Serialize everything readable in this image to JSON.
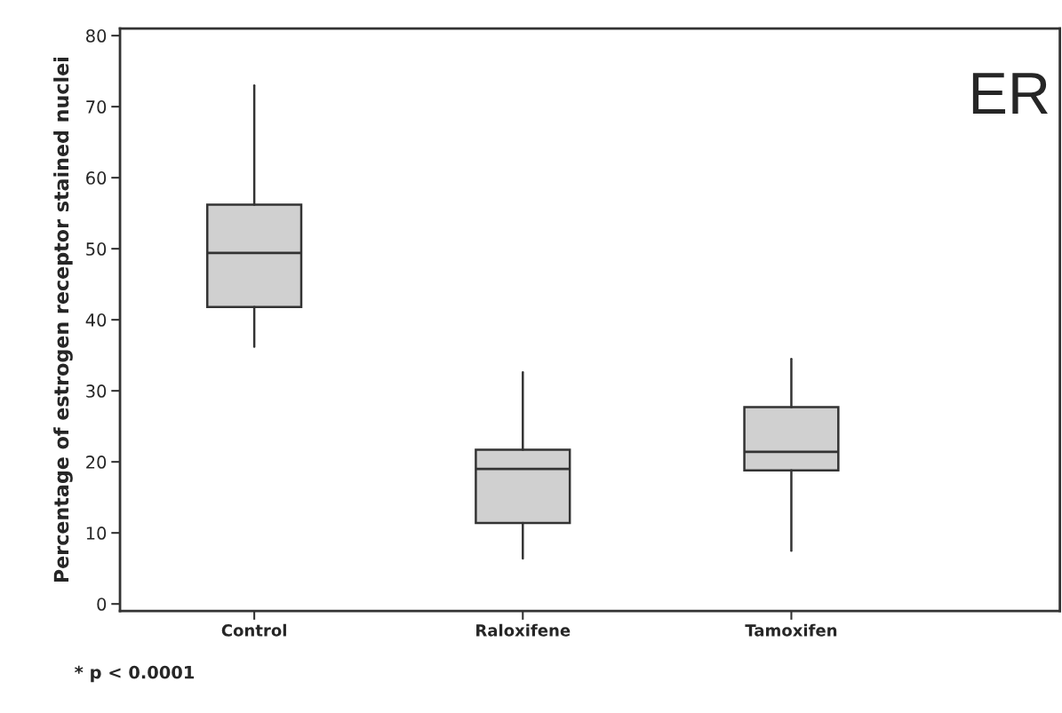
{
  "chart_data": {
    "type": "box",
    "ylabel": "Percentage of estrogen receptor stained nuclei",
    "categories": [
      "Control",
      "Raloxifene",
      "Tamoxifen"
    ],
    "boxes": [
      {
        "low": 36.2,
        "q1": 41.8,
        "median": 49.4,
        "q3": 56.2,
        "high": 73
      },
      {
        "low": 6.4,
        "q1": 11.4,
        "median": 19.0,
        "q3": 21.7,
        "high": 32.6
      },
      {
        "low": 7.5,
        "q1": 18.8,
        "median": 21.4,
        "q3": 27.7,
        "high": 34.5
      }
    ],
    "color": "#d0d0d0",
    "ylim": [
      -1,
      81
    ],
    "yticks": [
      0,
      10,
      20,
      30,
      40,
      50,
      60,
      70,
      80
    ],
    "grid": false,
    "annotations": [
      "ER",
      "* p < 0.0001"
    ]
  }
}
